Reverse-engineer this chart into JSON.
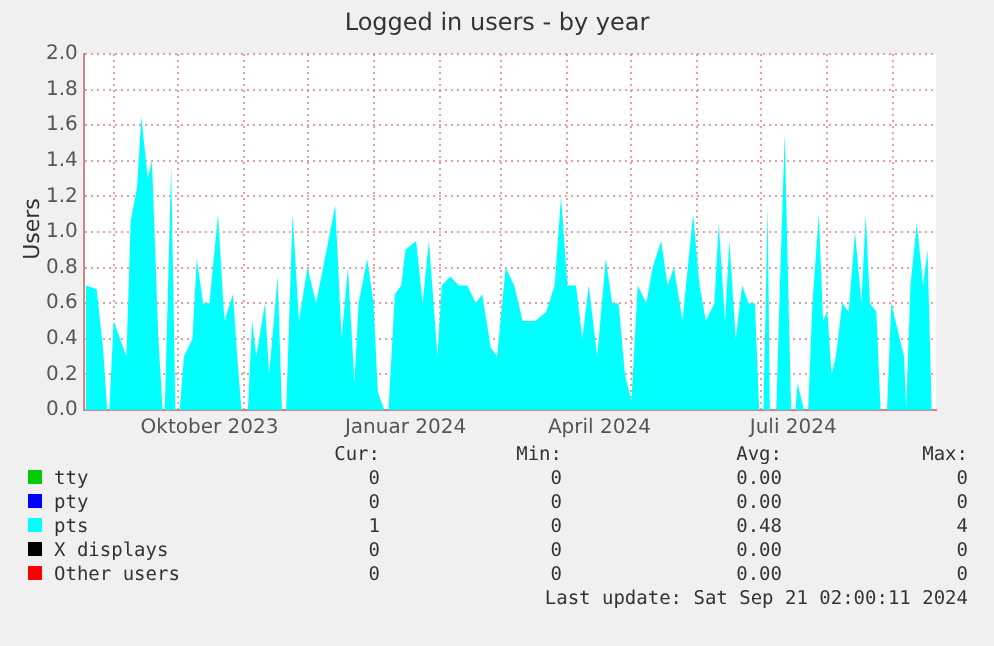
{
  "chart_data": {
    "type": "area",
    "title": "Logged in users - by year",
    "ylabel": "Users",
    "xlim": [
      "2023-08-18",
      "2024-09-21"
    ],
    "xticks": [
      {
        "value": "2023-09-01",
        "label": null
      },
      {
        "value": "2023-10-01",
        "label": null
      },
      {
        "value": "2023-10-16",
        "label": "Oktober 2023"
      },
      {
        "value": "2023-11-01",
        "label": null
      },
      {
        "value": "2023-12-01",
        "label": null
      },
      {
        "value": "2024-01-01",
        "label": null
      },
      {
        "value": "2024-01-16",
        "label": "Januar 2024"
      },
      {
        "value": "2024-02-01",
        "label": null
      },
      {
        "value": "2024-03-01",
        "label": null
      },
      {
        "value": "2024-04-01",
        "label": null
      },
      {
        "value": "2024-04-16",
        "label": "April 2024"
      },
      {
        "value": "2024-05-01",
        "label": null
      },
      {
        "value": "2024-06-01",
        "label": null
      },
      {
        "value": "2024-07-01",
        "label": null
      },
      {
        "value": "2024-07-16",
        "label": "Juli 2024"
      },
      {
        "value": "2024-08-01",
        "label": null
      },
      {
        "value": "2024-09-01",
        "label": null
      }
    ],
    "ylim": [
      0,
      2
    ],
    "yticks": [
      {
        "value": 0,
        "label": "0.0"
      },
      {
        "value": 0.2,
        "label": "0.2"
      },
      {
        "value": 0.4,
        "label": "0.4"
      },
      {
        "value": 0.6,
        "label": "0.6"
      },
      {
        "value": 0.8,
        "label": "0.8"
      },
      {
        "value": 1,
        "label": "1.0"
      },
      {
        "value": 1.2,
        "label": "1.2"
      },
      {
        "value": 1.4,
        "label": "1.4"
      },
      {
        "value": 1.6,
        "label": "1.6"
      },
      {
        "value": 1.8,
        "label": "1.8"
      },
      {
        "value": 2,
        "label": "2.0"
      }
    ],
    "grid": true,
    "legend": "bottom",
    "series": [
      {
        "name": "tty",
        "color": "#00cc00",
        "values": [
          null
        ]
      },
      {
        "name": "pty",
        "color": "#0000ff",
        "values": [
          null
        ]
      },
      {
        "name": "pts",
        "color": "#00ffff",
        "x": [
          "2023-08-19",
          "2023-08-24",
          "2023-08-27",
          "2023-08-29",
          "2023-08-30",
          "2023-09-01",
          "2023-09-04",
          "2023-09-07",
          "2023-09-09",
          "2023-09-12",
          "2023-09-14",
          "2023-09-17",
          "2023-09-19",
          "2023-09-22",
          "2023-09-24",
          "2023-09-25",
          "2023-09-28",
          "2023-09-30",
          "2023-10-02",
          "2023-10-04",
          "2023-10-08",
          "2023-10-10",
          "2023-10-13",
          "2023-10-16",
          "2023-10-20",
          "2023-10-23",
          "2023-10-27",
          "2023-10-29",
          "2023-10-31",
          "2023-11-03",
          "2023-11-05",
          "2023-11-07",
          "2023-11-11",
          "2023-11-13",
          "2023-11-17",
          "2023-11-19",
          "2023-11-21",
          "2023-11-24",
          "2023-11-27",
          "2023-12-01",
          "2023-12-05",
          "2023-12-10",
          "2023-12-14",
          "2023-12-17",
          "2023-12-20",
          "2023-12-23",
          "2023-12-25",
          "2023-12-29",
          "2024-01-01",
          "2024-01-03",
          "2024-01-06",
          "2024-01-08",
          "2024-01-11",
          "2024-01-14",
          "2024-01-16",
          "2024-01-21",
          "2024-01-24",
          "2024-01-27",
          "2024-01-31",
          "2024-02-02",
          "2024-02-06",
          "2024-02-10",
          "2024-02-14",
          "2024-02-18",
          "2024-02-21",
          "2024-02-25",
          "2024-02-28",
          "2024-03-03",
          "2024-03-07",
          "2024-03-11",
          "2024-03-14",
          "2024-03-17",
          "2024-03-22",
          "2024-03-26",
          "2024-03-29",
          "2024-04-01",
          "2024-04-05",
          "2024-04-08",
          "2024-04-11",
          "2024-04-15",
          "2024-04-19",
          "2024-04-22",
          "2024-04-25",
          "2024-04-28",
          "2024-05-01",
          "2024-05-04",
          "2024-05-08",
          "2024-05-11",
          "2024-05-15",
          "2024-05-18",
          "2024-05-21",
          "2024-05-25",
          "2024-05-30",
          "2024-06-02",
          "2024-06-05",
          "2024-06-09",
          "2024-06-11",
          "2024-06-14",
          "2024-06-16",
          "2024-06-19",
          "2024-06-22",
          "2024-06-25",
          "2024-06-28",
          "2024-06-30",
          "2024-07-02",
          "2024-07-04",
          "2024-07-05",
          "2024-07-08",
          "2024-07-10",
          "2024-07-12",
          "2024-07-14",
          "2024-07-15",
          "2024-07-17",
          "2024-07-18",
          "2024-07-21",
          "2024-07-23",
          "2024-07-25",
          "2024-07-28",
          "2024-07-30",
          "2024-08-01",
          "2024-08-03",
          "2024-08-05",
          "2024-08-08",
          "2024-08-11",
          "2024-08-14",
          "2024-08-17",
          "2024-08-19",
          "2024-08-21",
          "2024-08-24",
          "2024-08-26",
          "2024-08-29",
          "2024-08-31",
          "2024-09-03",
          "2024-09-06",
          "2024-09-07",
          "2024-09-09",
          "2024-09-12",
          "2024-09-15",
          "2024-09-17",
          "2024-09-19"
        ],
        "values": [
          0.7,
          0.68,
          0.35,
          0,
          0,
          0.5,
          0.4,
          0.3,
          1.06,
          1.25,
          1.65,
          1.3,
          1.4,
          0.4,
          0,
          0,
          1.37,
          0,
          0,
          0.3,
          0.4,
          0.85,
          0.6,
          0.6,
          1.1,
          0.5,
          0.65,
          0.3,
          0,
          0,
          0.5,
          0.3,
          0.6,
          0.2,
          0.75,
          0,
          0,
          1.1,
          0.5,
          0.8,
          0.6,
          0.9,
          1.15,
          0.4,
          0.8,
          0.15,
          0.6,
          0.85,
          0.6,
          0.1,
          0,
          0,
          0.65,
          0.7,
          0.9,
          0.95,
          0.6,
          0.95,
          0.3,
          0.7,
          0.75,
          0.7,
          0.7,
          0.6,
          0.65,
          0.35,
          0.3,
          0.8,
          0.7,
          0.5,
          0.5,
          0.5,
          0.55,
          0.7,
          1.2,
          0.7,
          0.7,
          0.4,
          0.7,
          0.3,
          0.85,
          0.6,
          0.6,
          0.2,
          0.05,
          0.7,
          0.6,
          0.8,
          0.95,
          0.7,
          0.8,
          0.5,
          1.1,
          0.7,
          0.5,
          0.6,
          1.05,
          0.5,
          0.95,
          0.4,
          0.7,
          0.6,
          0.6,
          0,
          0,
          1.15,
          0,
          0,
          0.8,
          1.55,
          0.5,
          0,
          0,
          0.15,
          0,
          0,
          0.6,
          1.1,
          0.5,
          0.55,
          0.2,
          0.3,
          0.6,
          0.55,
          1.0,
          0.6,
          1.1,
          0.6,
          0.55,
          0,
          0,
          0.6,
          0.45,
          0.3,
          0,
          0.7,
          1.05,
          0.7,
          0.9,
          0
        ]
      },
      {
        "name": "X displays",
        "color": "#000000",
        "values": [
          null
        ]
      },
      {
        "name": "Other users",
        "color": "#ff0000",
        "values": [
          null
        ]
      }
    ],
    "annotations": [
      "Cur:",
      "Min:",
      "Avg:",
      "Max:",
      "0",
      "0",
      "0.00",
      "0",
      "0",
      "0",
      "0.00",
      "0",
      "1",
      "0",
      "0.48",
      "4",
      "0",
      "0",
      "0.00",
      "0",
      "0",
      "0",
      "0.00",
      "0",
      "Last update: Sat Sep 21 02:00:11 2024"
    ]
  }
}
